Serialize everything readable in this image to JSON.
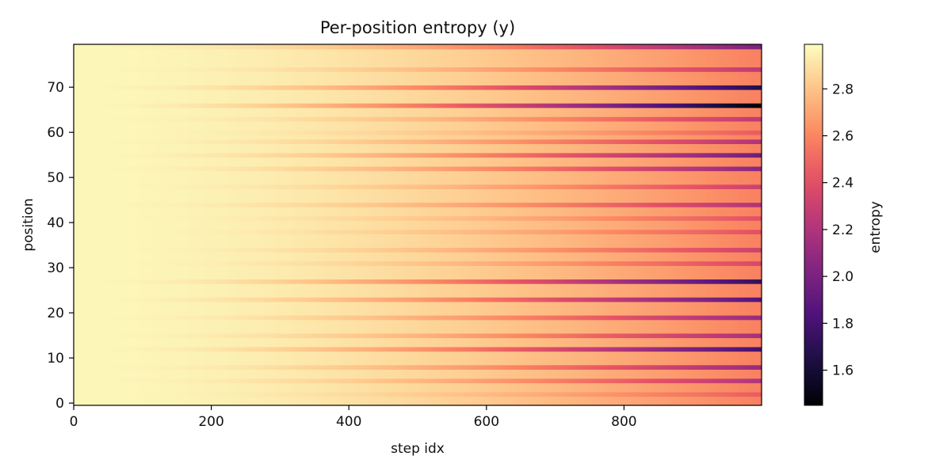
{
  "chart_data": {
    "type": "heatmap",
    "title": "Per-position entropy (y)",
    "xlabel": "step idx",
    "ylabel": "position",
    "xlim": [
      0,
      1000
    ],
    "ylim": [
      -0.5,
      79.5
    ],
    "x_ticks": [
      0,
      200,
      400,
      600,
      800
    ],
    "y_ticks": [
      0,
      10,
      20,
      30,
      40,
      50,
      60,
      70
    ],
    "colormap": "magma",
    "colorbar": {
      "label": "entropy",
      "range": [
        1.45,
        2.99
      ],
      "ticks": [
        1.6,
        1.8,
        2.0,
        2.2,
        2.4,
        2.6,
        2.8
      ]
    },
    "steps": 1000,
    "positions": 80,
    "start_value": 2.97,
    "final_base_value": 2.58,
    "dark_rows": [
      {
        "position": 66,
        "final_value": 1.45
      },
      {
        "position": 70,
        "final_value": 1.65
      },
      {
        "position": 27,
        "final_value": 1.72
      },
      {
        "position": 12,
        "final_value": 1.78
      },
      {
        "position": 23,
        "final_value": 1.85
      },
      {
        "position": 55,
        "final_value": 1.95
      },
      {
        "position": 79,
        "final_value": 2.0
      },
      {
        "position": 52,
        "final_value": 2.05
      },
      {
        "position": 8,
        "final_value": 2.1
      },
      {
        "position": 19,
        "final_value": 2.1
      },
      {
        "position": 15,
        "final_value": 2.15
      },
      {
        "position": 5,
        "final_value": 2.2
      },
      {
        "position": 44,
        "final_value": 2.2
      },
      {
        "position": 58,
        "final_value": 2.2
      },
      {
        "position": 63,
        "final_value": 2.25
      },
      {
        "position": 74,
        "final_value": 2.25
      },
      {
        "position": 34,
        "final_value": 2.3
      },
      {
        "position": 48,
        "final_value": 2.3
      },
      {
        "position": 31,
        "final_value": 2.35
      },
      {
        "position": 38,
        "final_value": 2.4
      },
      {
        "position": 41,
        "final_value": 2.4
      },
      {
        "position": 2,
        "final_value": 2.45
      },
      {
        "position": 60,
        "final_value": 2.45
      }
    ]
  }
}
